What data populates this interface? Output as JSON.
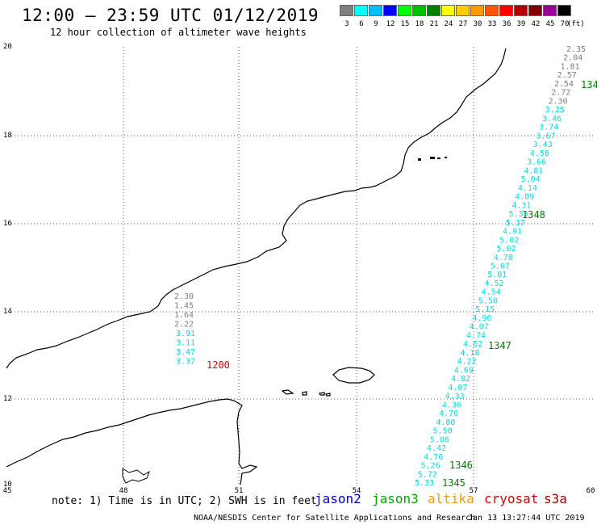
{
  "header": {
    "title": "12:00 – 23:59 UTC 01/12/2019",
    "subtitle": "12 hour collection of altimeter wave heights"
  },
  "legend": {
    "unit": "(ft)",
    "bins": [
      {
        "label": "3",
        "color": "#7f7f7f"
      },
      {
        "label": "6",
        "color": "#00ffff"
      },
      {
        "label": "9",
        "color": "#00bfff"
      },
      {
        "label": "12",
        "color": "#0000ff"
      },
      {
        "label": "15",
        "color": "#00ff00"
      },
      {
        "label": "18",
        "color": "#00c000"
      },
      {
        "label": "21",
        "color": "#008000"
      },
      {
        "label": "24",
        "color": "#ffff00"
      },
      {
        "label": "27",
        "color": "#ffcc00"
      },
      {
        "label": "30",
        "color": "#ff9900"
      },
      {
        "label": "33",
        "color": "#ff5500"
      },
      {
        "label": "36",
        "color": "#ff0000"
      },
      {
        "label": "39",
        "color": "#b00000"
      },
      {
        "label": "42",
        "color": "#800000"
      },
      {
        "label": "45",
        "color": "#990099"
      },
      {
        "label": "70",
        "color": "#000000"
      }
    ]
  },
  "axes": {
    "lat_ticks": [
      "20",
      "18",
      "16",
      "14",
      "12",
      "10"
    ],
    "lon_ticks": [
      "45",
      "48",
      "51",
      "54",
      "57",
      "60"
    ]
  },
  "tracks": [
    {
      "time": "1200",
      "time_color": "#dd0000",
      "values": [
        "2.30",
        "1.45",
        "1.64",
        "2.22",
        "3.91",
        "3.11",
        "3.47",
        "3.37"
      ],
      "colors": [
        "#7f7f7f",
        "#7f7f7f",
        "#7f7f7f",
        "#7f7f7f",
        "#00e0e0",
        "#00e0e0",
        "#00e0e0",
        "#00e0e0"
      ]
    },
    {
      "time_labels": [
        "134",
        "1348",
        "1347",
        "1346",
        "1345"
      ],
      "time_color": "#008000",
      "values": [
        "2.35",
        "2.04",
        "1.81",
        "2.57",
        "2.54",
        "2.72",
        "2.30",
        "3.25",
        "3.46",
        "3.74",
        "3.67",
        "3.43",
        "4.56",
        "3.66",
        "4.81",
        "5.04",
        "4.14",
        "4.09",
        "4.31",
        "5.33",
        "5.37",
        "4.91",
        "5.02",
        "5.02",
        "4.78",
        "5.67",
        "5.01",
        "4.52",
        "4.54",
        "5.50",
        "5.15",
        "4.96",
        "4.07",
        "4.74",
        "4.62",
        "4.18",
        "4.22",
        "4.69",
        "4.82",
        "4.07",
        "4.33",
        "4.36",
        "4.76",
        "4.80",
        "5.50",
        "5.06",
        "4.42",
        "4.76",
        "5.26",
        "5.72",
        "5.33"
      ],
      "gray_count": 7
    }
  ],
  "footer": {
    "note": "note: 1) Time is in UTC; 2) SWH is in feet",
    "missions": [
      {
        "name": "jason2",
        "color": "#0000dd"
      },
      {
        "name": "jason3",
        "color": "#00aa00"
      },
      {
        "name": "altika",
        "color": "#ff9900"
      },
      {
        "name": "cryosat",
        "color": "#dd0000"
      },
      {
        "name": "s3a",
        "color": "#aa0000"
      }
    ],
    "credit": "NOAA/NESDIS Center for Satellite Applications and Research",
    "timestamp": "Jan 13 13:27:44 UTC 2019"
  }
}
